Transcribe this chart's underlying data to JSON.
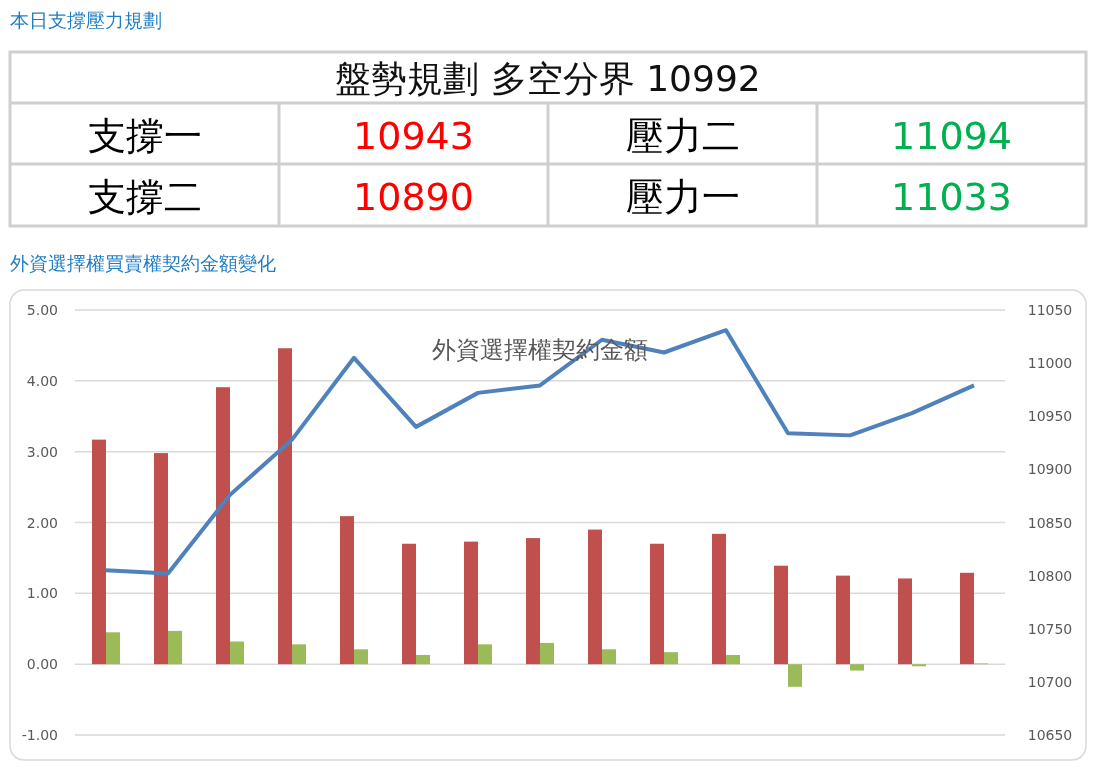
{
  "chart_data": [
    {
      "type": "other",
      "title": "本日支撐壓力規劃",
      "subtitle": "盤勢規劃 多空分界 10992",
      "annotations": [
        "支撐一",
        "10943",
        "壓力二",
        "11094",
        "支撐二",
        "10890",
        "壓力一",
        "11033"
      ],
      "colors": [
        "#000000",
        "#ff0000",
        "#000000",
        "#00b050",
        "#000000",
        "#ff0000",
        "#000000",
        "#00b050"
      ]
    },
    {
      "type": "bar",
      "title": "外資選擇權買賣權契約金額變化",
      "subtitle": "外資選擇權契約金額",
      "categories": [
        null,
        null,
        null,
        null,
        null,
        null,
        null,
        null,
        null,
        null,
        null,
        null,
        null,
        null,
        null
      ],
      "series": [
        {
          "color": "#c0504d",
          "values": [
            3.17,
            2.98,
            3.91,
            4.46,
            2.09,
            1.7,
            1.73,
            1.78,
            1.9,
            1.7,
            1.84,
            1.39,
            1.25,
            1.21,
            1.29
          ]
        },
        {
          "color": "#9bbb59",
          "values": [
            0.45,
            0.47,
            0.32,
            0.28,
            0.21,
            0.13,
            0.28,
            0.3,
            0.21,
            0.17,
            0.13,
            -0.32,
            -0.09,
            -0.03,
            0.01
          ]
        },
        {
          "type": "line",
          "axis": "y2",
          "color": "#4f81bd",
          "values": [
            10805,
            10802,
            10876,
            10928,
            11005,
            10940,
            10972,
            10979,
            11022,
            11010,
            11031,
            10934,
            10932,
            10953,
            10979
          ]
        }
      ],
      "ylim": [
        -1,
        5
      ],
      "yticks": [
        {
          "value": -1,
          "label": "-1.00"
        },
        {
          "value": 0,
          "label": "0.00"
        },
        {
          "value": 1,
          "label": "1.00"
        },
        {
          "value": 2,
          "label": "2.00"
        },
        {
          "value": 3,
          "label": "3.00"
        },
        {
          "value": 4,
          "label": "4.00"
        },
        {
          "value": 5,
          "label": "5.00"
        }
      ],
      "y2lim": [
        10650,
        11050
      ],
      "y2ticks": [
        10650,
        10700,
        10750,
        10800,
        10850,
        10900,
        10950,
        11000,
        11050
      ],
      "grid": "y",
      "line_style": "solid",
      "marker": "none"
    }
  ]
}
